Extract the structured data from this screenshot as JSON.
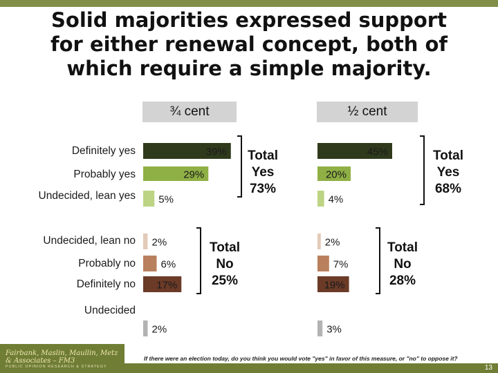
{
  "title_lines": [
    "Solid majorities expressed support",
    "for either renewal concept, both of",
    "which require a simple majority."
  ],
  "panels": [
    {
      "header": "¾ cent",
      "totals": [
        {
          "lines": [
            "Total",
            "Yes",
            "73%"
          ]
        },
        {
          "lines": [
            "Total",
            "No",
            "25%"
          ]
        }
      ]
    },
    {
      "header": "½ cent",
      "totals": [
        {
          "lines": [
            "Total",
            "Yes",
            "68%"
          ]
        },
        {
          "lines": [
            "Total",
            "No",
            "28%"
          ]
        }
      ]
    }
  ],
  "chart_data": {
    "type": "bar",
    "orientation": "horizontal",
    "categories": [
      "Definitely yes",
      "Probably yes",
      "Undecided, lean yes",
      "Undecided, lean no",
      "Probably no",
      "Definitely no",
      "Undecided"
    ],
    "series": [
      {
        "name": "¾ cent",
        "values": [
          39,
          29,
          5,
          2,
          6,
          17,
          2
        ],
        "labels": [
          "39%",
          "29%",
          "5%",
          "2%",
          "6%",
          "17%",
          "2%"
        ]
      },
      {
        "name": "½ cent",
        "values": [
          45,
          20,
          4,
          2,
          7,
          19,
          3
        ],
        "labels": [
          "45%",
          "20%",
          "4%",
          "2%",
          "7%",
          "19%",
          "3%"
        ]
      }
    ],
    "colors": [
      "#2f3a1c",
      "#8fb045",
      "#bcd483",
      "#e2cbb9",
      "#b9805d",
      "#6b3b28",
      "#b3b3b3"
    ]
  },
  "footnote": "If there were an election today, do you think you would vote \"yes\" in favor of this measure, or \"no\" to oppose it?",
  "footer": {
    "logo_line1": "Fairbank, Maslin, Maullin, Metz & Associates – FM3",
    "logo_line2": "PUBLIC OPINION RESEARCH & STRATEGY",
    "page_number": "13"
  }
}
